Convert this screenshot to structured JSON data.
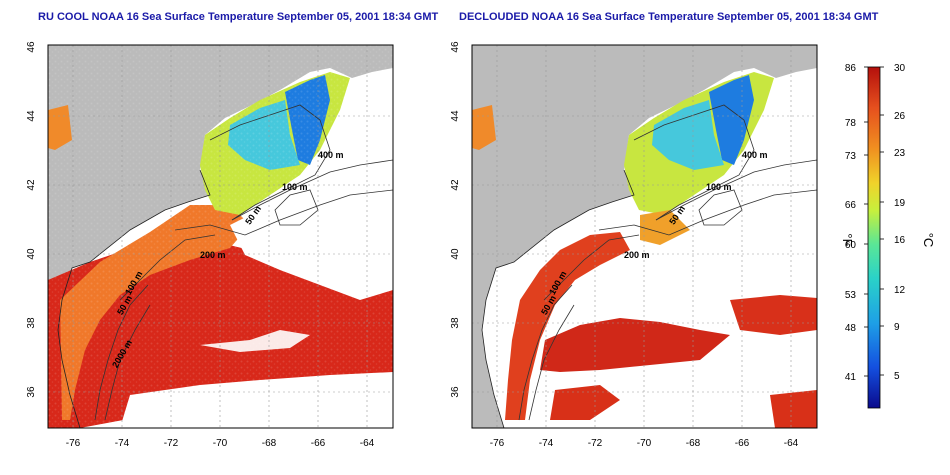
{
  "panels": [
    {
      "title": "RU COOL NOAA 16 Sea Surface Temperature September 05, 2001 18:34 GMT",
      "x_ticks": [
        "-76",
        "-74",
        "-72",
        "-70",
        "-68",
        "-66",
        "-64"
      ],
      "y_ticks": [
        "46",
        "44",
        "42",
        "40",
        "38",
        "36"
      ],
      "contour_labels": [
        "400 m",
        "100 m",
        "50 m",
        "200 m",
        "50 m",
        "100 m",
        "2000 m"
      ]
    },
    {
      "title": "DECLOUDED NOAA 16 Sea Surface Temperature September 05, 2001 18:34 GMT",
      "x_ticks": [
        "-76",
        "-74",
        "-72",
        "-70",
        "-68",
        "-66",
        "-64"
      ],
      "y_ticks": [
        "46",
        "44",
        "42",
        "40",
        "38",
        "36"
      ],
      "contour_labels": [
        "400 m",
        "100 m",
        "50 m",
        "200 m",
        "50 m",
        "100 m"
      ]
    }
  ],
  "colorbar": {
    "unit_f": "°F",
    "unit_c": "°C",
    "f_ticks": [
      "86",
      "78",
      "73",
      "66",
      "60",
      "53",
      "48",
      "41"
    ],
    "c_ticks": [
      "30",
      "26",
      "23",
      "19",
      "16",
      "12",
      "9",
      "5"
    ],
    "colors": [
      "#0a0a8c",
      "#1450e0",
      "#1ea0e6",
      "#2ad2c8",
      "#5ae696",
      "#c8f03c",
      "#f0d22a",
      "#f09020",
      "#e6501e",
      "#b4100c"
    ]
  },
  "colors": {
    "land": "#bbbbbb",
    "cloud": "#ffffff",
    "frame": "#000000",
    "title": "#1a1aa8"
  }
}
